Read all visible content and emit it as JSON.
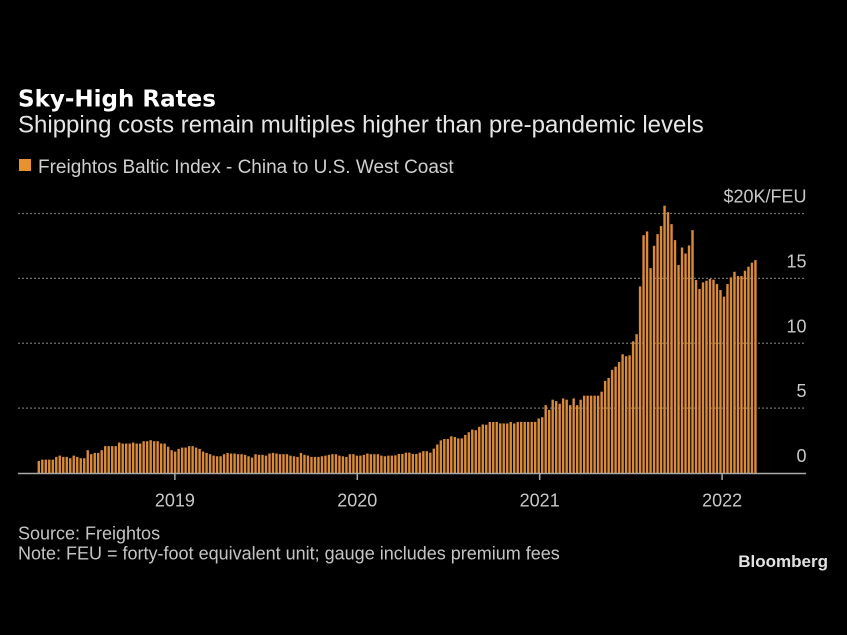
{
  "chart_data": {
    "type": "bar",
    "title": "Sky-High Rates",
    "subtitle": "Shipping costs remain multiples higher than pre-pandemic levels",
    "legend": [
      {
        "label": "Freightos Baltic Index - China to U.S. West Coast",
        "color": "#E8912F"
      }
    ],
    "legend_position": "top-left",
    "grid": true,
    "xlabel": "",
    "ylabel": "",
    "xlim": [
      2018.14,
      2022.46
    ],
    "ylim": [
      0,
      20
    ],
    "x_start": 2018.254,
    "x_step": 0.019165,
    "x_ticks": [
      {
        "value": 2019,
        "label": "2019"
      },
      {
        "value": 2020,
        "label": "2020"
      },
      {
        "value": 2021,
        "label": "2021"
      },
      {
        "value": 2022,
        "label": "2022"
      }
    ],
    "y_ticks": [
      {
        "value": 0,
        "label": "0"
      },
      {
        "value": 5,
        "label": "5"
      },
      {
        "value": 10,
        "label": "10"
      },
      {
        "value": 15,
        "label": "15"
      },
      {
        "value": 20,
        "label": "$20K/FEU"
      }
    ],
    "values": [
      0.93,
      1.03,
      1.03,
      1.03,
      1.03,
      1.24,
      1.34,
      1.24,
      1.24,
      1.14,
      1.34,
      1.24,
      1.14,
      1.14,
      1.76,
      1.45,
      1.55,
      1.55,
      1.76,
      2.07,
      2.07,
      2.07,
      2.07,
      2.35,
      2.27,
      2.27,
      2.27,
      2.35,
      2.27,
      2.27,
      2.45,
      2.45,
      2.53,
      2.45,
      2.45,
      2.27,
      2.27,
      2.02,
      1.76,
      1.65,
      1.86,
      1.96,
      1.96,
      2.07,
      2.07,
      1.96,
      1.86,
      1.65,
      1.55,
      1.45,
      1.34,
      1.29,
      1.29,
      1.45,
      1.55,
      1.5,
      1.5,
      1.45,
      1.45,
      1.4,
      1.29,
      1.19,
      1.45,
      1.4,
      1.4,
      1.34,
      1.5,
      1.55,
      1.5,
      1.45,
      1.45,
      1.45,
      1.34,
      1.29,
      1.24,
      1.55,
      1.4,
      1.34,
      1.24,
      1.24,
      1.24,
      1.29,
      1.34,
      1.4,
      1.45,
      1.45,
      1.34,
      1.29,
      1.24,
      1.45,
      1.45,
      1.34,
      1.34,
      1.4,
      1.5,
      1.45,
      1.45,
      1.45,
      1.34,
      1.29,
      1.34,
      1.34,
      1.36,
      1.47,
      1.47,
      1.57,
      1.57,
      1.47,
      1.47,
      1.57,
      1.68,
      1.68,
      1.57,
      1.88,
      2.2,
      2.51,
      2.62,
      2.62,
      2.83,
      2.77,
      2.67,
      2.67,
      2.93,
      3.14,
      3.35,
      3.3,
      3.56,
      3.74,
      3.72,
      3.93,
      3.93,
      3.93,
      3.82,
      3.82,
      3.82,
      3.93,
      3.82,
      3.93,
      3.94,
      3.94,
      3.94,
      3.94,
      3.94,
      4.2,
      4.3,
      5.23,
      4.87,
      5.65,
      5.54,
      5.34,
      5.75,
      5.65,
      5.23,
      5.75,
      5.23,
      5.65,
      5.96,
      5.96,
      5.96,
      5.96,
      5.96,
      6.27,
      7.1,
      7.33,
      7.95,
      8.19,
      8.55,
      9.15,
      9.0,
      9.07,
      10.15,
      10.7,
      14.38,
      18.33,
      18.62,
      15.79,
      17.51,
      18.41,
      19.03,
      20.6,
      20.1,
      19.18,
      17.95,
      16.03,
      17.38,
      16.92,
      17.54,
      18.72,
      14.87,
      14.18,
      14.69,
      14.82,
      14.97,
      14.9,
      14.56,
      14.1,
      13.59,
      14.56,
      15.08,
      15.51,
      15.18,
      15.18,
      15.59,
      15.9,
      16.21,
      16.41
    ]
  },
  "footer": {
    "source": "Source: Freightos",
    "note": "Note: FEU = forty-foot equivalent unit; gauge includes premium fees"
  },
  "brand": "Bloomberg",
  "colors": {
    "background": "#000000",
    "bar": "#D98B3A",
    "grid": "#6f6f6f",
    "axis": "#a9a9a9"
  }
}
